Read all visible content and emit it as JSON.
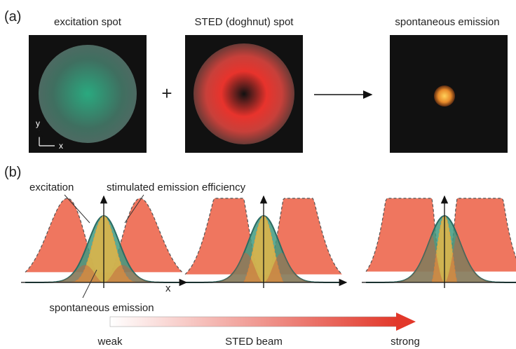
{
  "panel_a": {
    "label": "(a)",
    "images": [
      {
        "title": "excitation spot"
      },
      {
        "title": "STED (doghnut) spot"
      },
      {
        "title": "spontaneous emission"
      }
    ],
    "plus": "+",
    "axis_y": "y",
    "axis_x": "x"
  },
  "panel_b": {
    "label": "(b)",
    "labels": {
      "excitation": "excitation",
      "efficiency": "stimulated emission efficiency",
      "x_axis": "x",
      "spontaneous": "spontaneous emission"
    },
    "scale": {
      "weak": "weak",
      "beam": "STED beam",
      "strong": "strong"
    }
  }
}
